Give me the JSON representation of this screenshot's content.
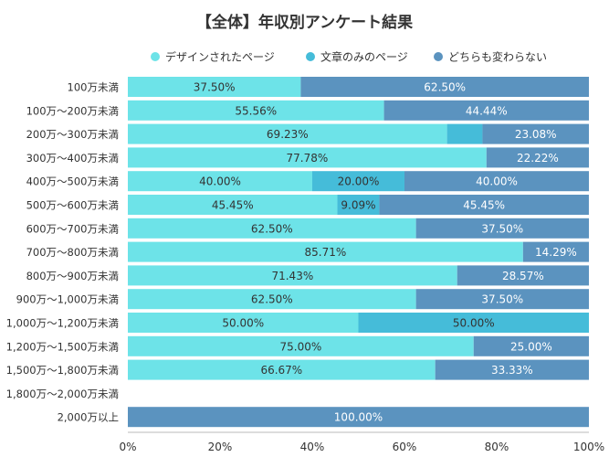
{
  "chart_data": {
    "type": "bar",
    "orientation": "horizontal",
    "stacked": true,
    "title": "【全体】年収別アンケート結果",
    "legend_position": "top",
    "xlim": [
      0,
      100
    ],
    "x_ticks": [
      "0%",
      "20%",
      "40%",
      "60%",
      "80%",
      "100%"
    ],
    "categories": [
      "100万未満",
      "100万～200万未満",
      "200万～300万未満",
      "300万～400万未満",
      "400万～500万未満",
      "500万～600万未満",
      "600万～700万未満",
      "700万～800万未満",
      "800万～900万未満",
      "900万～1,000万未満",
      "1,000万～1,200万未満",
      "1,200万～1,500万未満",
      "1,500万～1,800万未満",
      "1,800万～2,000万未満",
      "2,000万以上"
    ],
    "series": [
      {
        "name": "デザインされたページ",
        "color": "#6de3e8",
        "values": [
          37.5,
          55.56,
          69.23,
          77.78,
          40.0,
          45.45,
          62.5,
          85.71,
          71.43,
          62.5,
          50.0,
          75.0,
          66.67,
          0,
          0
        ],
        "labels": [
          "37.50%",
          "55.56%",
          "69.23%",
          "77.78%",
          "40.00%",
          "45.45%",
          "62.50%",
          "85.71%",
          "71.43%",
          "62.50%",
          "50.00%",
          "75.00%",
          "66.67%",
          "",
          ""
        ]
      },
      {
        "name": "文章のみのページ",
        "color": "#45bcd9",
        "values": [
          0,
          0,
          7.69,
          0,
          20.0,
          9.09,
          0,
          0,
          0,
          0,
          50.0,
          0,
          0,
          0,
          0
        ],
        "labels": [
          "",
          "",
          "",
          "",
          "20.00%",
          "9.09%",
          "",
          "",
          "",
          "",
          "50.00%",
          "",
          "",
          "",
          ""
        ]
      },
      {
        "name": "どちらも変わらない",
        "color": "#5b93bf",
        "values": [
          62.5,
          44.44,
          23.08,
          22.22,
          40.0,
          45.45,
          37.5,
          14.29,
          28.57,
          37.5,
          0,
          25.0,
          33.33,
          0,
          100.0
        ],
        "labels": [
          "62.50%",
          "44.44%",
          "23.08%",
          "22.22%",
          "40.00%",
          "45.45%",
          "37.50%",
          "14.29%",
          "28.57%",
          "37.50%",
          "",
          "25.00%",
          "33.33%",
          "",
          "100.00%"
        ]
      }
    ]
  }
}
